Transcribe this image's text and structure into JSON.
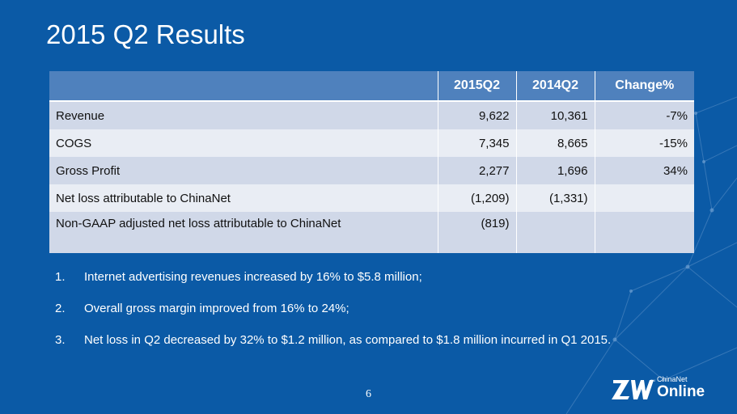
{
  "slide": {
    "title": "2015 Q2 Results",
    "page_number": "6"
  },
  "table": {
    "headers": [
      "",
      "2015Q2",
      "2014Q2",
      "Change%"
    ],
    "rows": [
      {
        "label": "Revenue",
        "q2_2015": "9,622",
        "q2_2014": "10,361",
        "change": "-7%"
      },
      {
        "label": "COGS",
        "q2_2015": "7,345",
        "q2_2014": "8,665",
        "change": "-15%"
      },
      {
        "label": "Gross Profit",
        "q2_2015": "2,277",
        "q2_2014": "1,696",
        "change": "34%"
      },
      {
        "label": "Net loss attributable to ChinaNet",
        "q2_2015": "(1,209)",
        "q2_2014": "(1,331)",
        "change": ""
      },
      {
        "label": "Non-GAAP adjusted net loss attributable to ChinaNet",
        "q2_2015": "(819)",
        "q2_2014": "",
        "change": ""
      }
    ]
  },
  "notes": [
    {
      "number": "1.",
      "text": "Internet advertising revenues increased by 16% to $5.8 million;"
    },
    {
      "number": "2.",
      "text": "Overall gross margin improved from 16% to 24%;"
    },
    {
      "number": "3.",
      "text": "Net loss in Q2 decreased by 32% to $1.2 million, as compared to $1.8 million incurred in Q1 2015."
    }
  ],
  "logo": {
    "mark": "ZW",
    "tm": "TM",
    "small_text": "ChinaNet",
    "big_text": "Online"
  },
  "colors": {
    "background": "#0b5aa6",
    "header": "#4f81bd",
    "row_odd": "#d0d8e8",
    "row_even": "#e9edf4"
  }
}
